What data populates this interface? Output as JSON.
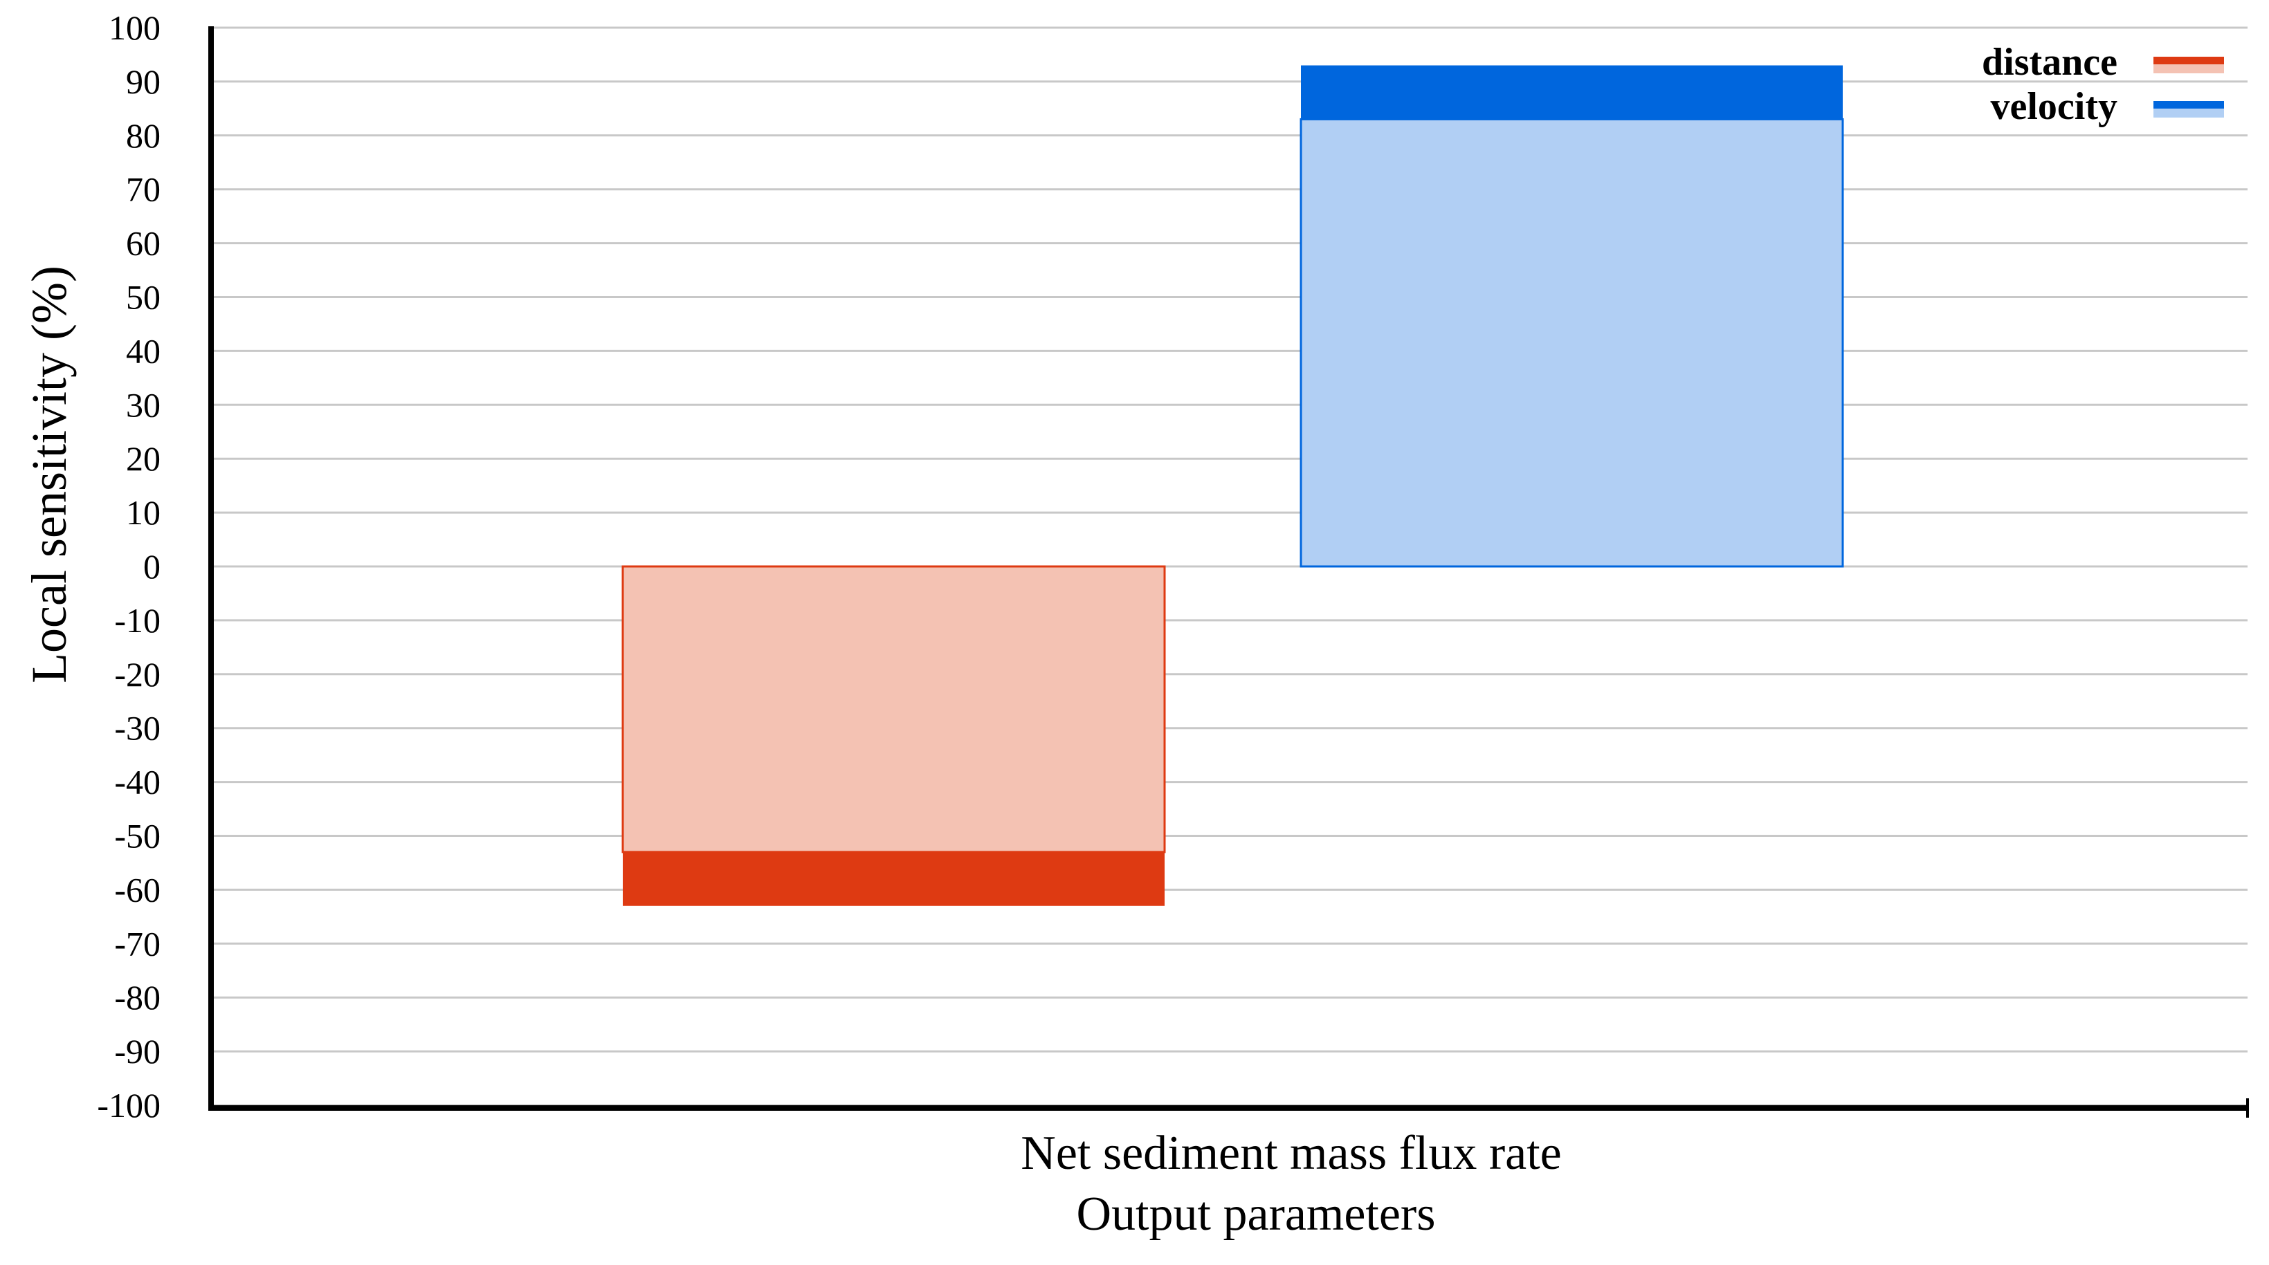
{
  "chart_data": {
    "type": "bar",
    "ylabel": "Local sensitivity (%)",
    "xlabel": "Output parameters",
    "categories": [
      "Net sediment mass flux rate"
    ],
    "ylim": [
      -100,
      100
    ],
    "yticks": [
      100,
      90,
      80,
      70,
      60,
      50,
      40,
      30,
      20,
      10,
      0,
      -10,
      -20,
      -30,
      -40,
      -50,
      -60,
      -70,
      -80,
      -90,
      -100
    ],
    "grid": true,
    "legend_position": "top-right",
    "series": [
      {
        "name": "distance",
        "values": [
          -63
        ],
        "range_low": [
          -53
        ],
        "color": "#de3a12",
        "fill": "#f4c2b3"
      },
      {
        "name": "velocity",
        "values": [
          93
        ],
        "range_low": [
          83
        ],
        "color": "#0066dd",
        "fill": "#b1cff4"
      }
    ]
  }
}
